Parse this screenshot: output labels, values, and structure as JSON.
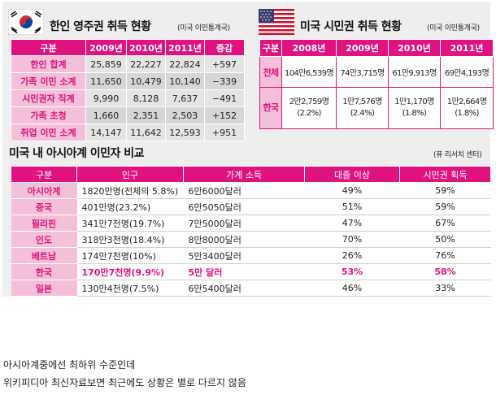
{
  "korea": {
    "title": "한인 영주권 취득 현황",
    "source": "(미국 이민통계국)",
    "headers": [
      "구분",
      "2009년",
      "2010년",
      "2011년",
      "증감"
    ],
    "rows": [
      {
        "label": "한인 합계",
        "values": [
          "25,859",
          "22,227",
          "22,824",
          "+597"
        ]
      },
      {
        "label": "가족 이민 소계",
        "values": [
          "11,650",
          "10,479",
          "10,140",
          "−339"
        ]
      },
      {
        "label": "시민권자 직계",
        "values": [
          "9,990",
          "8,128",
          "7,637",
          "−491"
        ]
      },
      {
        "label": "가족 초청",
        "values": [
          "1,660",
          "2,351",
          "2,503",
          "+152"
        ]
      },
      {
        "label": "취업 이민 소계",
        "values": [
          "14,147",
          "11,642",
          "12,593",
          "+951"
        ]
      }
    ]
  },
  "us": {
    "title": "미국 시민권 취득 현황",
    "source": "(미국 이민통계국)",
    "headers": [
      "구분",
      "2008년",
      "2009년",
      "2010년",
      "2011년"
    ],
    "rows": [
      {
        "label": "전체",
        "values": [
          "104만6,539명",
          "74만3,715명",
          "61만9,913명",
          "69만4,193명"
        ]
      },
      {
        "label": "한국",
        "values": [
          {
            "count": "2만2,759명",
            "pct": "(2.2%)"
          },
          {
            "count": "1만7,576명",
            "pct": "(2.4%)"
          },
          {
            "count": "1만1,170명",
            "pct": "(1.8%)"
          },
          {
            "count": "1만2,664명",
            "pct": "(1.8%)"
          }
        ]
      }
    ]
  },
  "asia": {
    "title": "미국 내 아시아계 이민자 비교",
    "source": "(퓨 리서치 센터)",
    "headers": [
      "구분",
      "인구",
      "가계 소득",
      "대졸 이상",
      "시민권 획득"
    ],
    "rows": [
      {
        "label": "아시아계",
        "pop": "1820만명(전체의 5.8%)",
        "income": "6만6000달러",
        "college": "49%",
        "citizen": "59%"
      },
      {
        "label": "중국",
        "pop": "401만명(23.2%)",
        "income": "6만5050달러",
        "college": "51%",
        "citizen": "59%"
      },
      {
        "label": "필리핀",
        "pop": "341만7천명(19.7%)",
        "income": "7만5000달러",
        "college": "47%",
        "citizen": "67%"
      },
      {
        "label": "인도",
        "pop": "318만3천명(18.4%)",
        "income": "8만8000달러",
        "college": "70%",
        "citizen": "50%"
      },
      {
        "label": "베트남",
        "pop": "174만7천명(10%)",
        "income": "5만3400달러",
        "college": "26%",
        "citizen": "76%"
      },
      {
        "label": "한국",
        "pop": "170만7천명(9.9%)",
        "income": "5만 달러",
        "college": "53%",
        "citizen": "58%"
      },
      {
        "label": "일본",
        "pop": "130만4천명(7.5%)",
        "income": "6만5400달러",
        "college": "46%",
        "citizen": "33%"
      }
    ]
  },
  "captions": [
    "아시아계중에선 최하위 수준인데",
    "위키피디아 최신자료보면 최근에도 상황은 별로 다르지 않음"
  ],
  "colors": {
    "accent": "#e0127f",
    "accent_light": "#f4bfd8",
    "panel": "#eeeeee"
  },
  "icons": {
    "korea_flag": "korea-flag-icon",
    "us_flag": "us-flag-icon"
  }
}
